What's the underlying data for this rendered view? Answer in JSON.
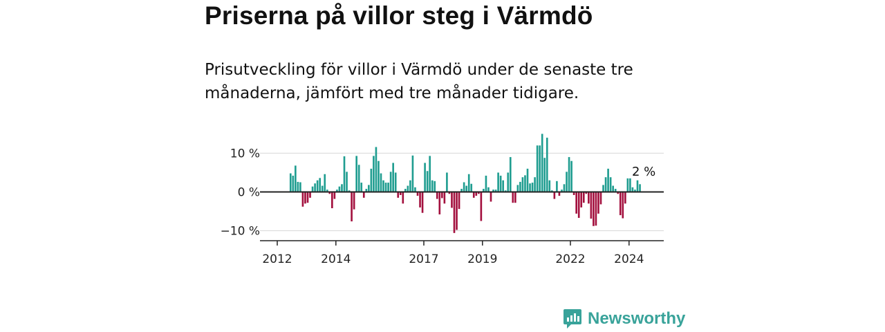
{
  "header": {
    "title": "Priserna på villor steg i Värmdö",
    "subtitle": "Prisutveckling för villor i Värmdö under de senaste tre månaderna, jämfört med tre månader tidigare."
  },
  "brand": {
    "name": "Newsworthy",
    "icon": "newsworthy-logo-icon"
  },
  "colors": {
    "positive": "#1f9d90",
    "negative": "#a3103e",
    "grid": "#dddddd",
    "axis": "#222222"
  },
  "chart_data": {
    "type": "bar",
    "title": "Priserna på villor steg i Värmdö",
    "xlabel": "",
    "ylabel": "",
    "unit": "%",
    "ylim": [
      -12,
      15
    ],
    "xlim": [
      2011.9,
      2025.2
    ],
    "y_ticks": [
      {
        "value": 10,
        "label": "10 %"
      },
      {
        "value": 0,
        "label": "0 %"
      },
      {
        "value": -10,
        "label": "−10 %"
      }
    ],
    "x_ticks": [
      {
        "value": 2012,
        "label": "2012"
      },
      {
        "value": 2014,
        "label": "2014"
      },
      {
        "value": 2017,
        "label": "2017"
      },
      {
        "value": 2019,
        "label": "2019"
      },
      {
        "value": 2022,
        "label": "2022"
      },
      {
        "value": 2024,
        "label": "2024"
      }
    ],
    "series": [
      {
        "name": "Prisutveckling",
        "start": "2012-06",
        "frequency": "monthly",
        "values": [
          4.8,
          4.2,
          6.8,
          2.6,
          2.5,
          -3.8,
          -3.0,
          -2.8,
          -1.5,
          1.4,
          2.2,
          3.0,
          3.6,
          1.6,
          4.6,
          0.6,
          -0.5,
          -4.2,
          -1.8,
          0.6,
          1.4,
          2.0,
          9.2,
          5.2,
          0.4,
          -7.6,
          -4.5,
          9.3,
          7.0,
          2.4,
          -1.5,
          0.8,
          1.8,
          6.0,
          9.3,
          11.6,
          8.0,
          4.8,
          3.0,
          2.4,
          2.4,
          5.2,
          7.5,
          5.0,
          -1.5,
          -0.8,
          -3.0,
          0.8,
          1.6,
          3.0,
          9.4,
          1.2,
          -1.0,
          -4.0,
          -5.4,
          7.5,
          5.4,
          9.3,
          3.0,
          2.8,
          -1.8,
          -5.8,
          -1.6,
          -3.0,
          5.0,
          -0.5,
          -4.1,
          -10.6,
          -9.8,
          -4.4,
          0.8,
          2.5,
          1.6,
          4.6,
          2.1,
          -1.5,
          -1.0,
          -0.5,
          -7.5,
          0.8,
          4.2,
          1.2,
          -2.5,
          0.6,
          0.6,
          5.0,
          4.2,
          3.0,
          0.4,
          5.0,
          9.0,
          -2.8,
          -2.8,
          1.8,
          2.6,
          3.8,
          4.3,
          6.0,
          2.2,
          2.4,
          3.8,
          12.0,
          12.0,
          15.0,
          8.8,
          14.0,
          3.0,
          0.4,
          -1.8,
          2.8,
          -1.0,
          0.6,
          2.0,
          5.2,
          9.0,
          8.0,
          -0.8,
          -5.6,
          -6.7,
          -4.0,
          -2.8,
          -0.5,
          -3.0,
          -6.9,
          -8.8,
          -8.7,
          -5.6,
          -3.2,
          1.8,
          3.8,
          6.0,
          3.8,
          1.6,
          0.8,
          -0.5,
          -6.0,
          -6.8,
          -3.0,
          3.5,
          3.5,
          1.2,
          0.6,
          3.0,
          2.0
        ]
      }
    ],
    "annotations": [
      {
        "text": "2 %",
        "target": "last"
      }
    ]
  }
}
